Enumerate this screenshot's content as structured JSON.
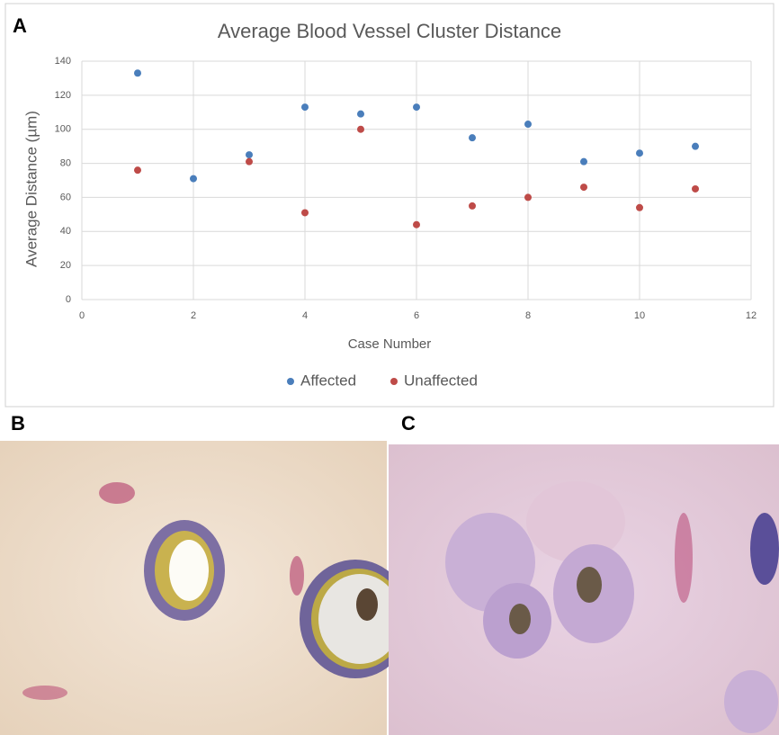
{
  "panel_label": "A",
  "chart_data": {
    "type": "scatter",
    "title": "Average Blood Vessel Cluster Distance",
    "x_label": "Case Number",
    "y_label": "Average Distance (µm)",
    "series": [
      {
        "name": "Affected",
        "color": "#4a7ebb",
        "x": [
          1,
          2,
          3,
          4,
          5,
          6,
          7,
          8,
          9,
          10,
          11
        ],
        "values": [
          133,
          71,
          85,
          113,
          109,
          113,
          95,
          103,
          81,
          86,
          90
        ]
      },
      {
        "name": "Unaffected",
        "color": "#be4b48",
        "x": [
          1,
          3,
          4,
          5,
          6,
          7,
          8,
          9,
          10,
          11
        ],
        "values": [
          76,
          81,
          51,
          100,
          44,
          55,
          60,
          66,
          54,
          65
        ]
      }
    ],
    "xlim": [
      0,
      12
    ],
    "xticks": [
      0,
      2,
      4,
      6,
      8,
      10,
      12
    ],
    "ylim": [
      0,
      140
    ],
    "yticks": [
      0,
      20,
      40,
      60,
      80,
      100,
      120,
      140
    ],
    "grid": true,
    "legend": "bottom"
  },
  "panels": [
    {
      "label": "B"
    },
    {
      "label": "C"
    }
  ]
}
